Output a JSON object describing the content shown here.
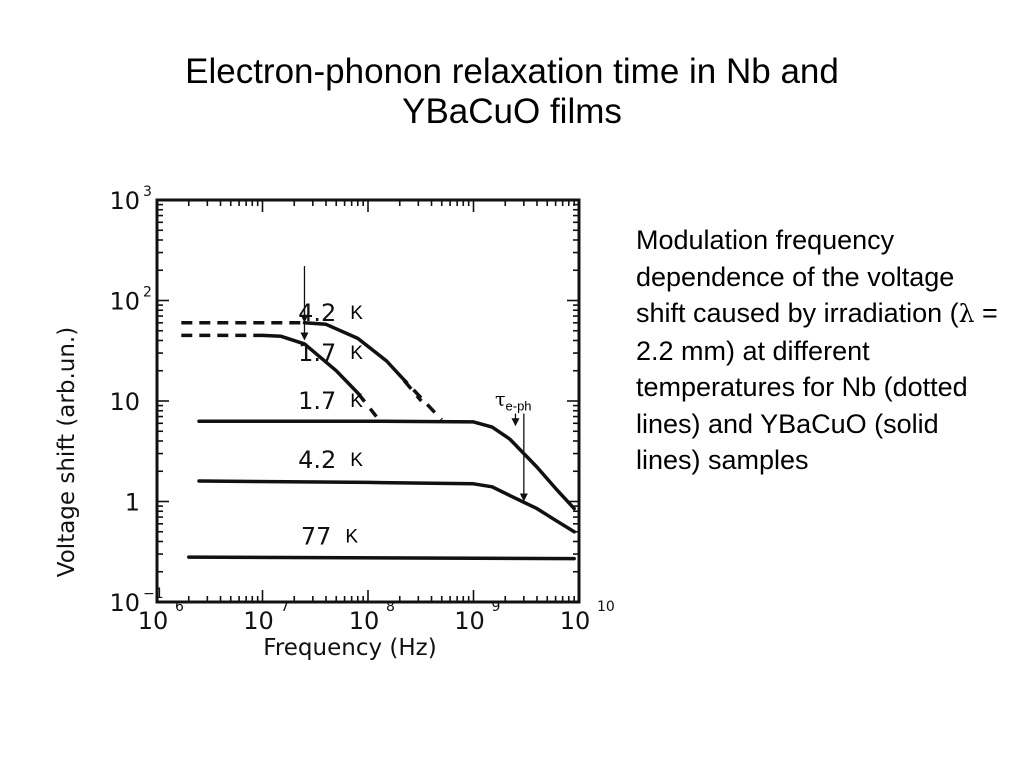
{
  "slide": {
    "title": "Electron-phonon relaxation time in Nb and YBaCuO films",
    "caption_parts": [
      "Modulation frequency dependence of the voltage shift caused by irradiation (",
      "λ",
      " = 2.2 mm) at different temperatures for Nb (dotted lines) and YBaCuO (solid lines) samples"
    ]
  },
  "chart_data": {
    "type": "line",
    "xscale": "log",
    "yscale": "log",
    "xlim": [
      1000000,
      10000000000
    ],
    "ylim": [
      0.1,
      1000
    ],
    "xlabel": "Frequency (Hz)",
    "ylabel": "Voltage shift (arb.un.)",
    "x_ticks": [
      {
        "base": "10",
        "exp": "6"
      },
      {
        "base": "10",
        "exp": "7"
      },
      {
        "base": "10",
        "exp": "8"
      },
      {
        "base": "10",
        "exp": "9"
      },
      {
        "base": "10",
        "exp": "10"
      }
    ],
    "y_ticks": [
      {
        "base": "10",
        "exp": "3",
        "v": 1000
      },
      {
        "base": "10",
        "exp": "2",
        "v": 100
      },
      {
        "base": "10",
        "exp": "",
        "v": 10
      },
      {
        "base": "1",
        "exp": "",
        "v": 1
      },
      {
        "base": "10",
        "exp": "−1",
        "v": 0.1
      }
    ],
    "series": [
      {
        "name": "1.7 K",
        "sample": "Nb",
        "style": "dotted",
        "solid": [
          [
            10000000,
            45
          ],
          [
            15000000,
            44
          ],
          [
            25000000,
            37
          ],
          [
            50000000,
            20
          ],
          [
            80000000,
            12
          ]
        ],
        "dashed_before": [
          [
            1700000,
            45
          ],
          [
            10000000,
            45
          ]
        ],
        "dashed_after": [
          [
            80000000,
            12
          ],
          [
            120000000,
            7
          ]
        ]
      },
      {
        "name": "4.2 K",
        "sample": "Nb",
        "style": "dotted",
        "solid": [
          [
            25000000,
            60
          ],
          [
            40000000,
            58
          ],
          [
            80000000,
            42
          ],
          [
            150000000,
            25
          ],
          [
            200000000,
            18
          ]
        ],
        "dashed_before": [
          [
            1700000,
            60
          ],
          [
            25000000,
            60
          ]
        ],
        "dashed_after": [
          [
            200000000,
            18
          ],
          [
            500000000,
            6.5
          ]
        ],
        "dashed_gap": [
          [
            220000000,
            16
          ],
          [
            320000000,
            10
          ]
        ]
      },
      {
        "name": "1.7 K",
        "sample": "YBaCuO",
        "style": "solid",
        "solid": [
          [
            2500000,
            6.3
          ],
          [
            100000000,
            6.3
          ],
          [
            1000000000,
            6.2
          ],
          [
            1500000000,
            5.5
          ],
          [
            2200000000,
            4.2
          ],
          [
            4000000000,
            2.2
          ],
          [
            6000000000,
            1.35
          ],
          [
            9000000000,
            0.85
          ]
        ]
      },
      {
        "name": "4.2 K",
        "sample": "YBaCuO",
        "style": "solid",
        "solid": [
          [
            2500000,
            1.6
          ],
          [
            100000000,
            1.55
          ],
          [
            1000000000,
            1.5
          ],
          [
            1500000000,
            1.4
          ],
          [
            2200000000,
            1.15
          ],
          [
            4000000000,
            0.85
          ],
          [
            6000000000,
            0.65
          ],
          [
            9000000000,
            0.5
          ]
        ]
      },
      {
        "name": "77 K",
        "sample": "YBaCuO",
        "style": "solid",
        "solid": [
          [
            2000000,
            0.28
          ],
          [
            9000000000,
            0.27
          ]
        ]
      }
    ],
    "labels": [
      {
        "number": "1.7",
        "unit": "K",
        "x": 50000000,
        "y": 30
      },
      {
        "number": "4.2",
        "unit": "K",
        "x": 50000000,
        "y": 75
      },
      {
        "number": "1.7",
        "unit": "K",
        "x": 50000000,
        "y": 10
      },
      {
        "number": "4.2",
        "unit": "K",
        "x": 50000000,
        "y": 2.6
      },
      {
        "number": "77",
        "unit": "K",
        "x": 45000000,
        "y": 0.45
      }
    ],
    "markers": [
      {
        "x": 25000000,
        "y_from": 80,
        "y_to": 40
      },
      {
        "x": 25000000,
        "y_from": 220,
        "y_to": 60
      },
      {
        "x": 2500000000,
        "y_from": 7.5,
        "y_to": 5.6
      },
      {
        "x": 3000000000,
        "y_from": 7.5,
        "y_to": 1.0
      }
    ],
    "annotation": {
      "symbol": "τ",
      "subscript": "e-ph",
      "x": 1600000000,
      "y": 9
    }
  }
}
